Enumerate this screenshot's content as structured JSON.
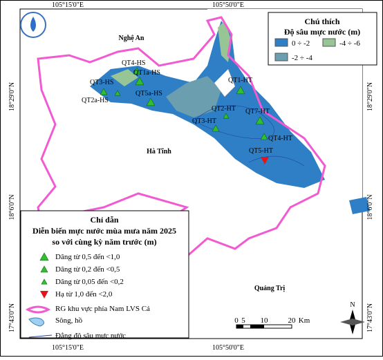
{
  "coords": {
    "top": [
      "105°15'0\"E",
      "105°50'0\"E"
    ],
    "bottom": [
      "105°15'0\"E",
      "105°50'0\"E"
    ],
    "left": [
      "18°29'0\"N",
      "18°6'0\"N",
      "17°43'0\"N"
    ],
    "right": [
      "18°29'0\"N",
      "18°6'0\"N",
      "17°43'0\"N"
    ]
  },
  "places": [
    "Nghệ An",
    "Hà Tĩnh",
    "Quảng Trị"
  ],
  "depth_legend": {
    "title": "Chú thích",
    "subtitle": "Độ sâu mực nước (m)",
    "items": [
      {
        "label": "0 ÷ -2",
        "color": "#2f7fc6"
      },
      {
        "label": "-2 ÷ -4",
        "color": "#6b9fb0"
      },
      {
        "label": "-4 ÷ -6",
        "color": "#98c596"
      }
    ]
  },
  "guide": {
    "title": "Chỉ dẫn",
    "subtitle": [
      "Diễn biến mực nước mùa mưa năm 2025",
      "so với cùng kỳ năm trước (m)"
    ],
    "items": [
      "Dâng từ 0,5 đến <1,0",
      "Dâng từ 0,2 đến <0,5",
      "Dâng từ 0,05 đến <0,2",
      "Hạ từ 1,0 đến <2,0",
      "RG khu vực phía Nam LVS Cá",
      "Sông, hồ",
      "Đẳng độ sâu mực nước"
    ]
  },
  "wells": [
    {
      "label": "QT4-HS",
      "legend_item": 1
    },
    {
      "label": "QT1a-HS",
      "legend_item": 0
    },
    {
      "label": "QT3-HS",
      "legend_item": 1
    },
    {
      "label": "QT5a-HS",
      "legend_item": 0
    },
    {
      "label": "QT2a-HS",
      "legend_item": 2
    },
    {
      "label": "QT1-HT",
      "legend_item": 0
    },
    {
      "label": "QT2-HT",
      "legend_item": 2
    },
    {
      "label": "QT7-HT",
      "legend_item": 0
    },
    {
      "label": "QT3-HT",
      "legend_item": 1
    },
    {
      "label": "QT4-HT",
      "legend_item": 1
    },
    {
      "label": "QT5-HT",
      "legend_item": 3
    }
  ],
  "scale": {
    "ticks": [
      "0",
      "5",
      "10",
      "20"
    ],
    "unit": "Km"
  },
  "north": "N"
}
